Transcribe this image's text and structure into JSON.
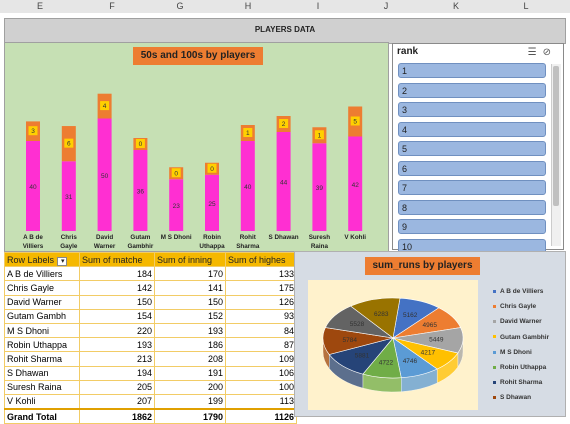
{
  "columns": [
    "E",
    "F",
    "G",
    "H",
    "I",
    "J",
    "K",
    "L"
  ],
  "header": {
    "title": "PLAYERS DATA"
  },
  "bar_chart_title": "50s and 100s by players",
  "chart_data": [
    {
      "type": "bar",
      "title": "50s and 100s by players",
      "categories": [
        "A B de Villiers",
        "Chris Gayle",
        "David Warner",
        "Gutam Gambhir",
        "M S Dhoni",
        "Robin Uthappa",
        "Rohit Sharma",
        "S Dhawan",
        "Suresh Raina",
        "V Kohli"
      ],
      "series": [
        {
          "values": [
            40,
            31,
            50,
            36,
            23,
            25,
            40,
            44,
            39,
            42
          ],
          "color": "#ff2fd2"
        },
        {
          "values": [
            3,
            6,
            4,
            0,
            0,
            0,
            1,
            2,
            1,
            5
          ],
          "color": "#ed7d31"
        }
      ]
    },
    {
      "type": "pie",
      "title": "sum_runs by players",
      "categories": [
        "A B de Villiers",
        "Chris Gayle",
        "David Warner",
        "Gutam Gambhir",
        "M S Dhoni",
        "Robin Uthappa",
        "Rohit Sharma",
        "S Dhawan",
        "Suresh Raina",
        "V Kohli"
      ],
      "values": [
        5162,
        4965,
        5449,
        4217,
        4746,
        4722,
        5881,
        5784,
        5528,
        6283
      ],
      "colors": [
        "#4472c4",
        "#ed7d31",
        "#a5a5a5",
        "#ffc000",
        "#5b9bd5",
        "#70ad47",
        "#264478",
        "#9e480e",
        "#636363",
        "#997300"
      ]
    }
  ],
  "slicer": {
    "title": "rank",
    "items": [
      "1",
      "2",
      "3",
      "4",
      "5",
      "6",
      "7",
      "8",
      "9",
      "10"
    ]
  },
  "pivot": {
    "headers": [
      "Row Labels",
      "Sum of matche",
      "Sum of inning",
      "Sum of highes"
    ],
    "rows": [
      [
        "A B de Villiers",
        "184",
        "170",
        "133"
      ],
      [
        "Chris Gayle",
        "142",
        "141",
        "175"
      ],
      [
        "David Warner",
        "150",
        "150",
        "126"
      ],
      [
        "Gutam Gambh",
        "154",
        "152",
        "93"
      ],
      [
        "M S Dhoni",
        "220",
        "193",
        "84"
      ],
      [
        "Robin Uthappa",
        "193",
        "186",
        "87"
      ],
      [
        "Rohit Sharma",
        "213",
        "208",
        "109"
      ],
      [
        "S Dhawan",
        "194",
        "191",
        "106"
      ],
      [
        "Suresh Raina",
        "205",
        "200",
        "100"
      ],
      [
        "V Kohli",
        "207",
        "199",
        "113"
      ]
    ],
    "total": [
      "Grand Total",
      "1862",
      "1790",
      "1126"
    ]
  },
  "pie_title": "sum_runs by players",
  "pie_legend": [
    "A B de Villiers",
    "Chris Gayle",
    "David Warner",
    "Gutam Gambhir",
    "M S Dhoni",
    "Robin Uthappa",
    "Rohit Sharma",
    "S Dhawan"
  ]
}
